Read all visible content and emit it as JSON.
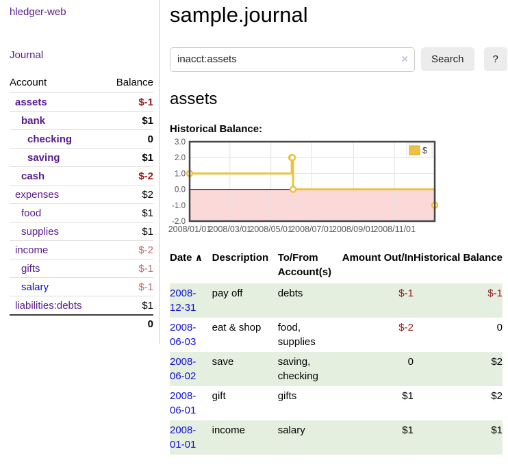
{
  "app_title": "hledger-web",
  "sidebar": {
    "journal_link": "Journal",
    "table": {
      "account_header": "Account",
      "balance_header": "Balance",
      "rows": [
        {
          "name": "assets",
          "depth": 0,
          "bold": true,
          "balance": "$-1",
          "balance_style": "neg-strong",
          "link": "visited"
        },
        {
          "name": "bank",
          "depth": 1,
          "bold": true,
          "balance": "$1",
          "balance_style": "pos",
          "link": "visited"
        },
        {
          "name": "checking",
          "depth": 2,
          "bold": true,
          "balance": "0",
          "balance_style": "pos",
          "link": "visited"
        },
        {
          "name": "saving",
          "depth": 2,
          "bold": true,
          "balance": "$1",
          "balance_style": "pos",
          "link": "visited"
        },
        {
          "name": "cash",
          "depth": 1,
          "bold": true,
          "balance": "$-2",
          "balance_style": "neg-strong",
          "link": "visited"
        },
        {
          "name": "expenses",
          "depth": 0,
          "bold": false,
          "balance": "$2",
          "balance_style": "pos",
          "link": "visited"
        },
        {
          "name": "food",
          "depth": 1,
          "bold": false,
          "balance": "$1",
          "balance_style": "pos",
          "link": "visited"
        },
        {
          "name": "supplies",
          "depth": 1,
          "bold": false,
          "balance": "$1",
          "balance_style": "pos",
          "link": "visited"
        },
        {
          "name": "income",
          "depth": 0,
          "bold": false,
          "balance": "$-2",
          "balance_style": "neg-soft",
          "link": "visited"
        },
        {
          "name": "gifts",
          "depth": 1,
          "bold": false,
          "balance": "$-1",
          "balance_style": "neg-soft",
          "link": "visited"
        },
        {
          "name": "salary",
          "depth": 1,
          "bold": false,
          "balance": "$-1",
          "balance_style": "neg-soft",
          "link": "unvisited"
        },
        {
          "name": "liabilities:debts",
          "depth": 0,
          "bold": false,
          "balance": "$1",
          "balance_style": "pos",
          "link": "visited"
        }
      ],
      "total": "0"
    }
  },
  "main": {
    "title": "sample.journal",
    "search": {
      "value": "inacct:assets",
      "clear_icon": "×",
      "search_button": "Search",
      "help_button": "?"
    },
    "account_title": "assets",
    "chart_heading": "Historical Balance:"
  },
  "chart_data": {
    "type": "line",
    "step": true,
    "title": "Historical Balance:",
    "x": [
      "2008-01-01",
      "2008-06-01",
      "2008-06-02",
      "2008-06-03",
      "2008-12-31"
    ],
    "series": [
      {
        "name": "$",
        "color": "#edc240",
        "values": [
          1,
          2,
          2,
          0,
          -1
        ]
      }
    ],
    "xlim": [
      "2008-01-01",
      "2008-12-31"
    ],
    "ylim": [
      -2,
      3
    ],
    "y_ticks": [
      "3.0",
      "2.0",
      "1.0",
      "0.0",
      "-1.0",
      "-2.0"
    ],
    "x_ticks": [
      "2008/01/01",
      "2008/03/01",
      "2008/05/01",
      "2008/07/01",
      "2008/09/01",
      "2008/11/01"
    ],
    "grid": true,
    "legend": "$",
    "legend_position": "top-right",
    "negative_region": true
  },
  "register": {
    "headers": {
      "date": "Date",
      "description": "Description",
      "accounts": "To/From Account(s)",
      "amount": "Amount Out/In",
      "balance": "Historical Balance"
    },
    "sort_icon": "∧",
    "rows": [
      {
        "date": "2008-12-31",
        "description": "pay off",
        "accounts": [
          "debts"
        ],
        "amount": "$-1",
        "balance": "$-1"
      },
      {
        "date": "2008-06-03",
        "description": "eat & shop",
        "accounts": [
          "food",
          "supplies"
        ],
        "amount": "$-2",
        "balance": "0"
      },
      {
        "date": "2008-06-02",
        "description": "save",
        "accounts": [
          "saving",
          "checking"
        ],
        "amount": "0",
        "balance": "$2"
      },
      {
        "date": "2008-06-01",
        "description": "gift",
        "accounts": [
          "gifts"
        ],
        "amount": "$1",
        "balance": "$2"
      },
      {
        "date": "2008-01-01",
        "description": "income",
        "accounts": [
          "salary"
        ],
        "amount": "$1",
        "balance": "$1"
      }
    ]
  },
  "colors": {
    "accent_purple": "#551a8b",
    "link_blue": "#0f0fd0",
    "negative_strong": "#96181c",
    "negative_soft": "#c16a6e",
    "row_highlight_green": "#e4efe0",
    "chart_line": "#edc240",
    "chart_negative_region": "#fbd9d9",
    "chart_zero_line": "#a00000",
    "chart_border": "#454545",
    "chart_grid": "#e3e3e3",
    "chart_tick_text": "#545454"
  }
}
